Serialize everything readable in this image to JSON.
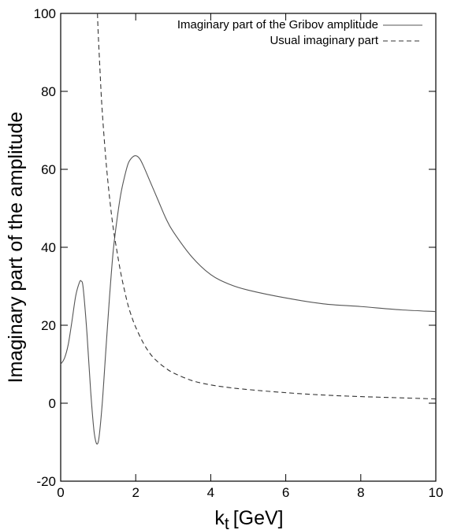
{
  "chart_data": {
    "type": "line",
    "title": "",
    "xlabel": "k",
    "xlabel_subscript": "t",
    "xlabel_unit": "[GeV]",
    "ylabel": "Imaginary part of the amplitude",
    "xlim": [
      0,
      10
    ],
    "ylim": [
      -20,
      100
    ],
    "xticks": [
      0,
      2,
      4,
      6,
      8,
      10
    ],
    "yticks": [
      -20,
      0,
      20,
      40,
      60,
      80,
      100
    ],
    "xtick_labels": [
      "0",
      "2",
      "4",
      "6",
      "8",
      "10"
    ],
    "ytick_labels": [
      "-20",
      "0",
      "20",
      "40",
      "60",
      "80",
      "100"
    ],
    "grid": false,
    "legend_position": "top-right",
    "series": [
      {
        "name": "Imaginary part of the Gribov amplitude",
        "style": "solid",
        "color": "#555555",
        "x": [
          0.0,
          0.1,
          0.2,
          0.3,
          0.4,
          0.5,
          0.55,
          0.6,
          0.7,
          0.8,
          0.9,
          1.0,
          1.1,
          1.2,
          1.3,
          1.4,
          1.5,
          1.6,
          1.7,
          1.8,
          1.9,
          2.0,
          2.1,
          2.2,
          2.4,
          2.6,
          2.8,
          3.0,
          3.5,
          4.0,
          4.5,
          5.0,
          6.0,
          7.0,
          8.0,
          9.0,
          10.0
        ],
        "y": [
          10,
          11.5,
          15,
          21,
          27.5,
          31,
          31.3,
          29.5,
          18,
          3,
          -8,
          -10,
          -1,
          13,
          27,
          39,
          47,
          53.5,
          58,
          61.5,
          63,
          63.5,
          62.8,
          61,
          56.5,
          52,
          47.5,
          44,
          37.5,
          33,
          30.5,
          29,
          27,
          25.5,
          24.8,
          24,
          23.5
        ]
      },
      {
        "name": "Usual imaginary part",
        "style": "dashed",
        "color": "#333333",
        "x": [
          0.98,
          1.0,
          1.05,
          1.1,
          1.2,
          1.3,
          1.4,
          1.5,
          1.6,
          1.7,
          1.8,
          1.9,
          2.0,
          2.2,
          2.4,
          2.6,
          2.8,
          3.0,
          3.5,
          4.0,
          4.5,
          5.0,
          6.0,
          7.0,
          8.0,
          9.0,
          10.0
        ],
        "y": [
          100,
          95,
          85,
          76,
          63,
          53,
          45,
          39,
          33.5,
          29,
          25,
          22,
          19.5,
          15.5,
          12.5,
          10.5,
          9,
          7.8,
          5.8,
          4.7,
          4.0,
          3.5,
          2.7,
          2.1,
          1.7,
          1.4,
          1.1
        ]
      }
    ]
  }
}
